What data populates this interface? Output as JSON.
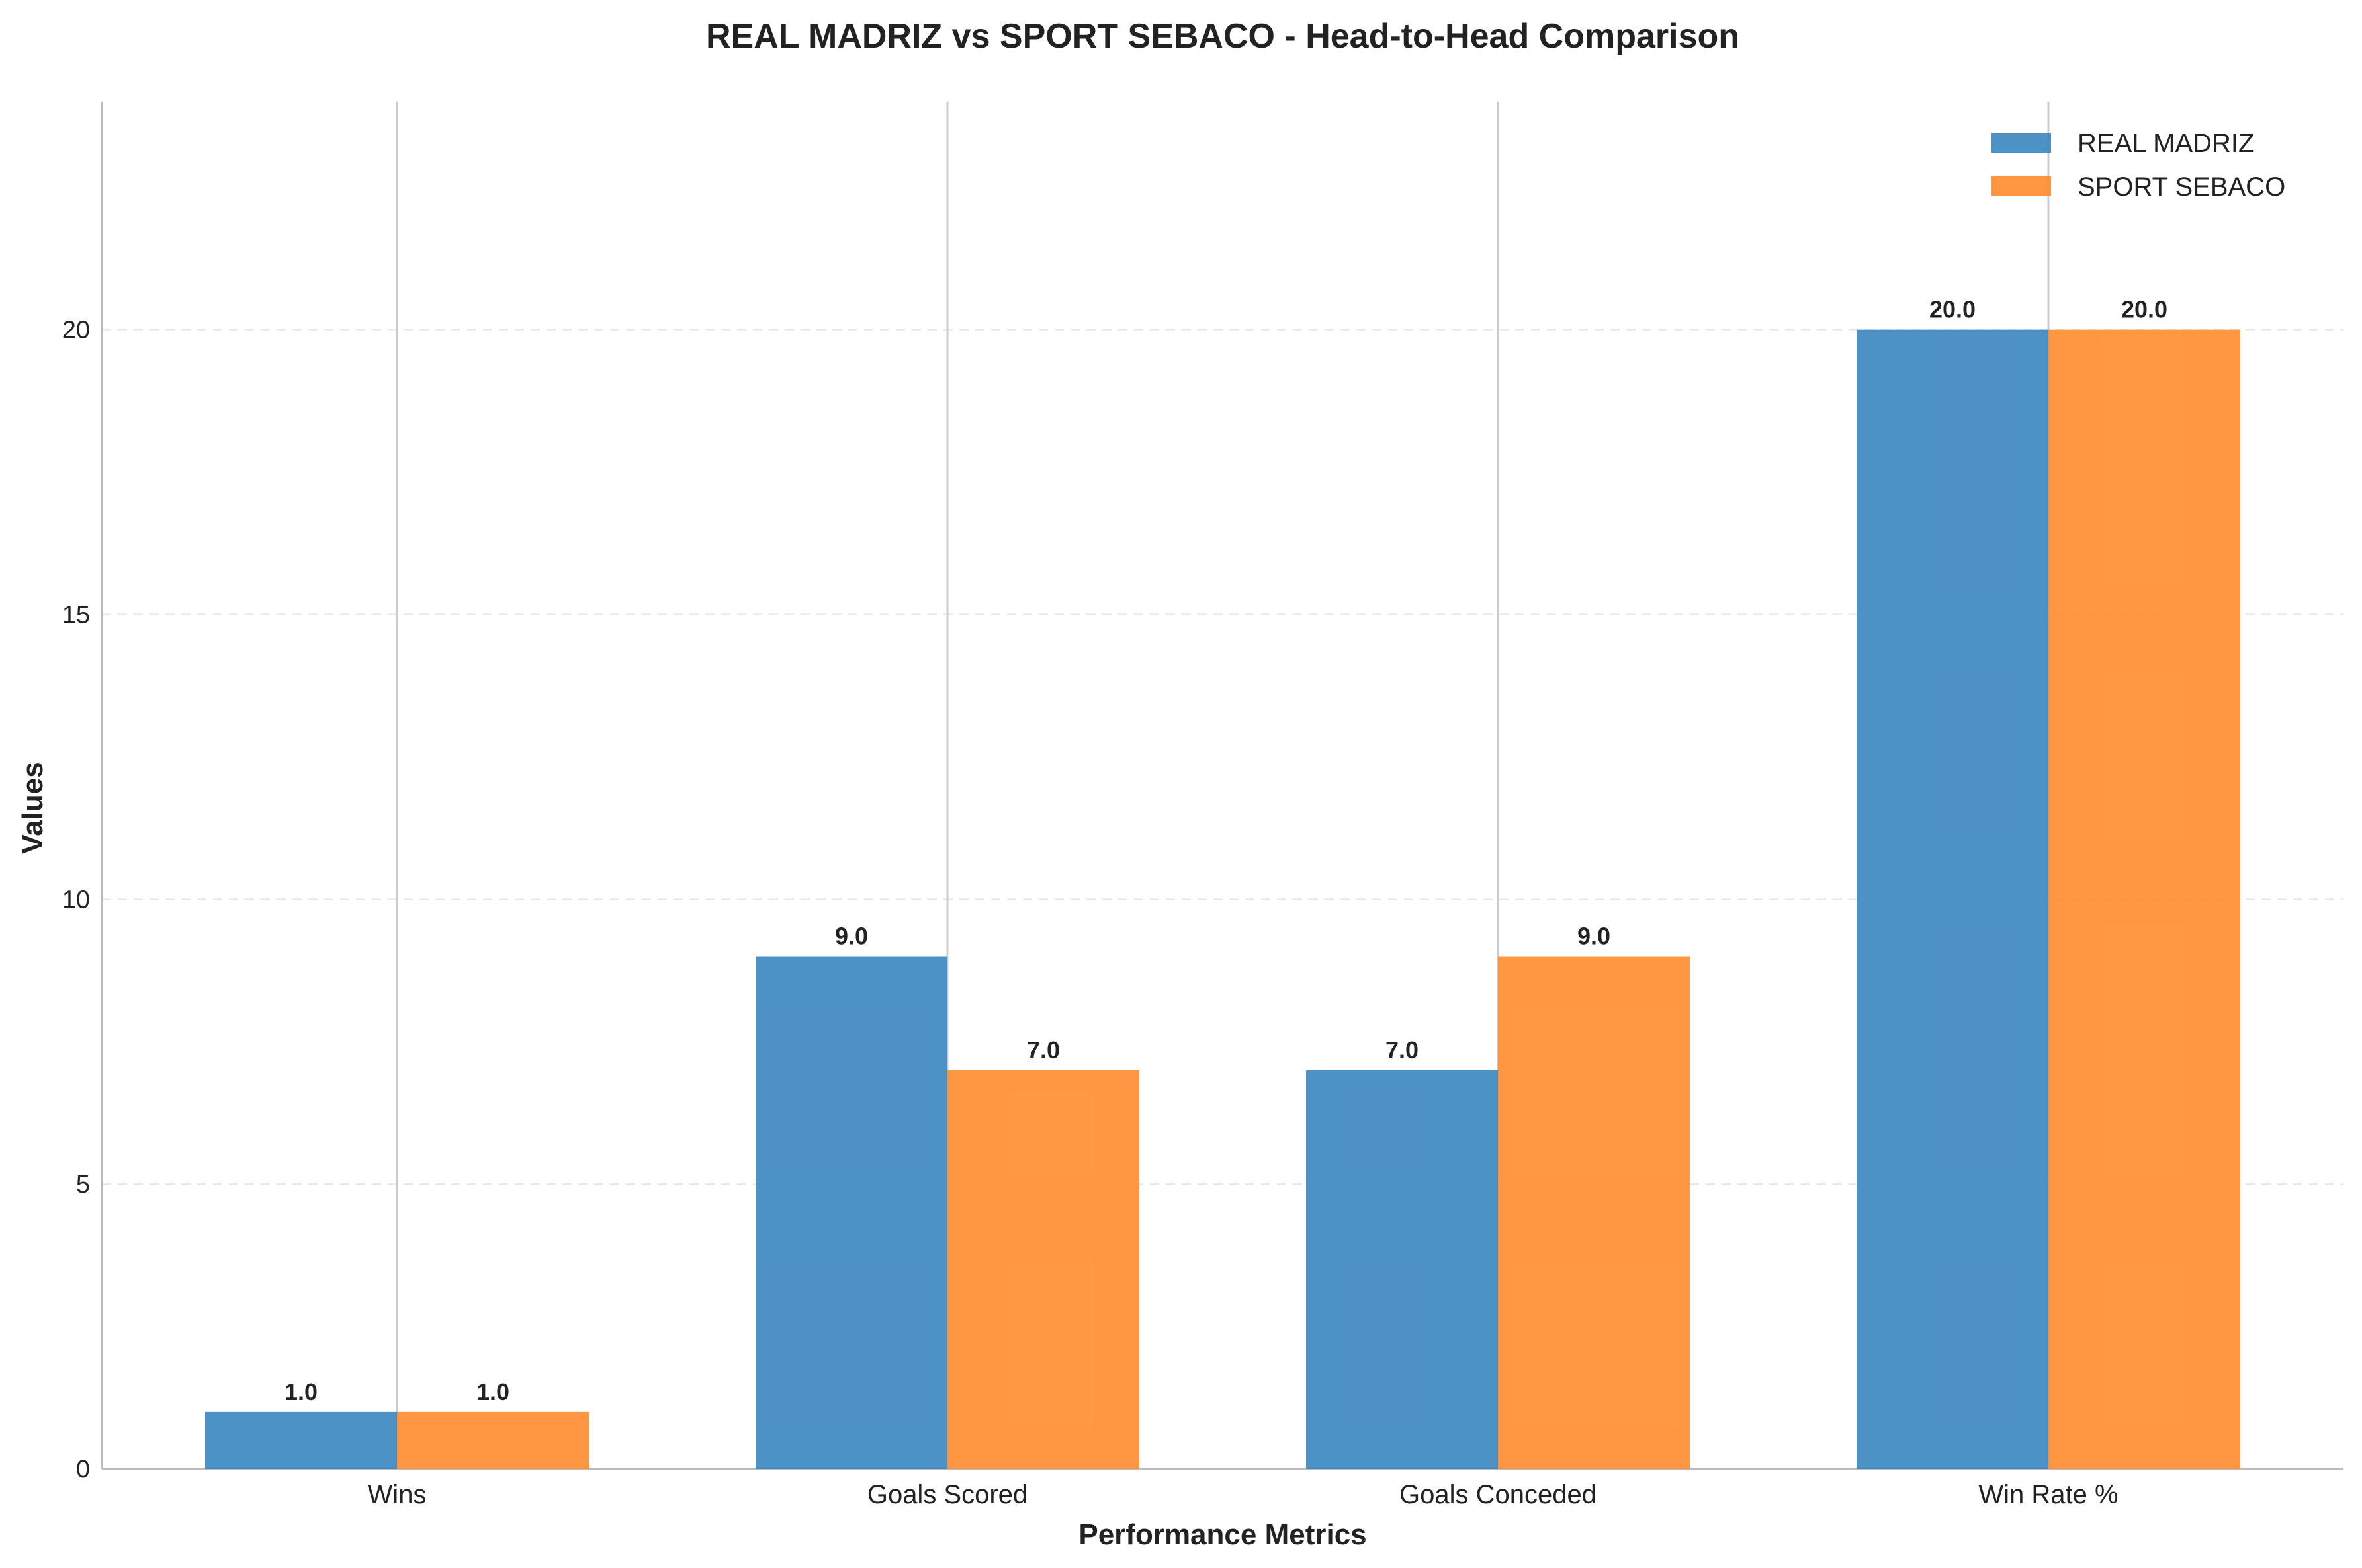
{
  "chart_data": {
    "type": "bar",
    "title": "REAL MADRIZ vs SPORT SEBACO - Head-to-Head Comparison",
    "xlabel": "Performance Metrics",
    "ylabel": "Values",
    "categories": [
      "Wins",
      "Goals Scored",
      "Goals Conceded",
      "Win Rate %"
    ],
    "series": [
      {
        "name": "REAL MADRIZ",
        "color": "#3a86bf",
        "values": [
          1.0,
          9.0,
          7.0,
          20.0
        ]
      },
      {
        "name": "SPORT SEBACO",
        "color": "#ff8c2e",
        "values": [
          1.0,
          7.0,
          9.0,
          20.0
        ]
      }
    ],
    "ylim": [
      0,
      24
    ],
    "yticks": [
      0,
      5,
      10,
      15,
      20
    ],
    "value_label_format": "one-decimal",
    "grid": {
      "y": "dashed",
      "x": "solid at category centers"
    },
    "legend_position": "top-right"
  }
}
